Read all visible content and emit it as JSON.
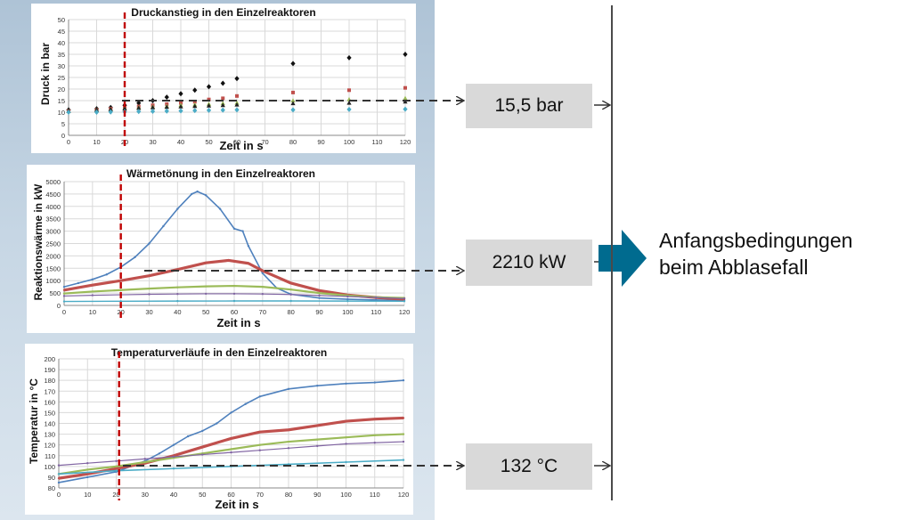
{
  "chart_data": [
    {
      "type": "scatter",
      "title": "Druckanstieg in den Einzelreaktoren",
      "xlabel": "Zeit in s",
      "ylabel": "Druck in bar",
      "xlim": [
        0,
        120
      ],
      "ylim": [
        0,
        50
      ],
      "xticks": [
        0,
        10,
        20,
        30,
        40,
        50,
        60,
        70,
        80,
        90,
        100,
        110,
        120
      ],
      "yticks": [
        0,
        5,
        10,
        15,
        20,
        25,
        30,
        35,
        40,
        45,
        50
      ],
      "grid": true,
      "marker_line_x": 20,
      "series": [
        {
          "color": "#111111",
          "marker": "diamond",
          "x": [
            0,
            10,
            15,
            20,
            25,
            30,
            35,
            40,
            45,
            50,
            55,
            60,
            80,
            100,
            120
          ],
          "y": [
            11,
            11.5,
            12,
            13,
            14,
            15,
            16.5,
            18,
            19.5,
            21,
            22.5,
            24.5,
            31,
            33.5,
            35
          ]
        },
        {
          "color": "#c0504d",
          "marker": "square",
          "x": [
            0,
            10,
            15,
            20,
            25,
            30,
            35,
            40,
            45,
            50,
            55,
            60,
            80,
            100,
            120
          ],
          "y": [
            10.5,
            11,
            11.5,
            12,
            12.5,
            13,
            13.5,
            14,
            14.5,
            15.5,
            16,
            17,
            18.5,
            19.5,
            20.5
          ]
        },
        {
          "color": "#9bbb59",
          "marker": "triangle",
          "x": [
            0,
            10,
            15,
            20,
            25,
            30,
            35,
            40,
            45,
            50,
            55,
            60,
            80,
            100,
            120
          ],
          "y": [
            10.5,
            11,
            11.2,
            11.6,
            12,
            12.3,
            12.6,
            13,
            13.2,
            13.5,
            13.8,
            14,
            15,
            15.5,
            16
          ]
        },
        {
          "color": "#222222",
          "marker": "triangle",
          "x": [
            0,
            10,
            15,
            20,
            25,
            30,
            35,
            40,
            45,
            50,
            55,
            60,
            80,
            100,
            120
          ],
          "y": [
            10.5,
            11,
            11.2,
            11.5,
            11.8,
            12,
            12.2,
            12.4,
            12.6,
            12.8,
            13,
            13.2,
            13.8,
            14,
            14.5
          ]
        },
        {
          "color": "#4bacc6",
          "marker": "diamond",
          "x": [
            0,
            10,
            15,
            20,
            25,
            30,
            35,
            40,
            45,
            50,
            55,
            60,
            80,
            100,
            120
          ],
          "y": [
            10,
            10,
            10.1,
            10.2,
            10.3,
            10.4,
            10.5,
            10.6,
            10.7,
            10.8,
            10.9,
            11,
            11,
            11.2,
            11.3
          ]
        }
      ]
    },
    {
      "type": "line",
      "title": "Wärmetönung in den Einzelreaktoren",
      "xlabel": "Zeit in s",
      "ylabel": "Reaktionswärme in kW",
      "xlim": [
        0,
        120
      ],
      "ylim": [
        0,
        5000
      ],
      "xticks": [
        0,
        10,
        20,
        30,
        40,
        50,
        60,
        70,
        80,
        90,
        100,
        110,
        120
      ],
      "yticks": [
        0,
        500,
        1000,
        1500,
        2000,
        2500,
        3000,
        3500,
        4000,
        4500,
        5000
      ],
      "grid": true,
      "marker_line_x": 20,
      "series": [
        {
          "color": "#4f81bd",
          "width": 1.6,
          "x": [
            0,
            5,
            10,
            15,
            20,
            25,
            30,
            35,
            40,
            45,
            47,
            50,
            55,
            60,
            63,
            65,
            70,
            75,
            80,
            90,
            100,
            110,
            120
          ],
          "y": [
            750,
            900,
            1050,
            1250,
            1550,
            1950,
            2500,
            3200,
            3900,
            4500,
            4600,
            4450,
            3900,
            3100,
            3000,
            2400,
            1300,
            700,
            450,
            300,
            250,
            220,
            200
          ]
        },
        {
          "color": "#c0504d",
          "width": 3.2,
          "x": [
            0,
            10,
            20,
            30,
            40,
            50,
            58,
            65,
            70,
            80,
            90,
            100,
            110,
            120
          ],
          "y": [
            620,
            820,
            1000,
            1200,
            1450,
            1720,
            1820,
            1700,
            1400,
            900,
            600,
            420,
            320,
            250
          ]
        },
        {
          "color": "#9bbb59",
          "width": 2.2,
          "x": [
            0,
            10,
            20,
            30,
            40,
            50,
            60,
            70,
            80,
            90,
            100,
            110,
            120
          ],
          "y": [
            480,
            560,
            620,
            680,
            730,
            770,
            790,
            750,
            640,
            500,
            400,
            330,
            300
          ]
        },
        {
          "color": "#8064a2",
          "width": 1.2,
          "x": [
            0,
            10,
            20,
            30,
            40,
            50,
            60,
            70,
            80,
            90,
            100,
            110,
            120
          ],
          "y": [
            380,
            410,
            430,
            450,
            460,
            470,
            470,
            460,
            440,
            400,
            360,
            320,
            280
          ]
        },
        {
          "color": "#4bacc6",
          "width": 1.4,
          "x": [
            0,
            20,
            40,
            60,
            80,
            100,
            120
          ],
          "y": [
            160,
            170,
            175,
            180,
            180,
            175,
            170
          ]
        }
      ]
    },
    {
      "type": "line",
      "title": "Temperaturverläufe in den Einzelreaktoren",
      "xlabel": "Zeit in s",
      "ylabel": "Temperatur in °C",
      "xlim": [
        0,
        120
      ],
      "ylim": [
        80,
        200
      ],
      "xticks": [
        0,
        10,
        20,
        30,
        40,
        50,
        60,
        70,
        80,
        90,
        100,
        110,
        120
      ],
      "yticks": [
        80,
        90,
        100,
        110,
        120,
        130,
        140,
        150,
        160,
        170,
        180,
        190,
        200
      ],
      "grid": true,
      "marker_line_x": 21,
      "series": [
        {
          "color": "#4f81bd",
          "width": 1.6,
          "x": [
            0,
            10,
            20,
            25,
            30,
            35,
            40,
            45,
            50,
            55,
            60,
            65,
            70,
            80,
            90,
            100,
            110,
            120
          ],
          "y": [
            85,
            90,
            95,
            100,
            105,
            112,
            120,
            128,
            133,
            140,
            150,
            158,
            165,
            172,
            175,
            177,
            178,
            180
          ]
        },
        {
          "color": "#c0504d",
          "width": 3.2,
          "x": [
            0,
            10,
            20,
            30,
            40,
            50,
            60,
            70,
            80,
            90,
            100,
            110,
            120
          ],
          "y": [
            89,
            93,
            98,
            103,
            110,
            118,
            126,
            132,
            134,
            138,
            142,
            144,
            145
          ]
        },
        {
          "color": "#9bbb59",
          "width": 2.2,
          "x": [
            0,
            10,
            20,
            30,
            40,
            50,
            60,
            70,
            80,
            90,
            100,
            110,
            120
          ],
          "y": [
            93,
            97,
            100,
            104,
            108,
            112,
            116,
            120,
            123,
            125,
            127,
            129,
            130
          ]
        },
        {
          "color": "#8064a2",
          "width": 1.2,
          "x": [
            0,
            10,
            20,
            30,
            40,
            50,
            60,
            70,
            80,
            90,
            100,
            110,
            120
          ],
          "y": [
            101,
            103,
            105,
            107,
            109,
            111,
            113,
            115,
            117,
            119,
            121,
            122,
            123
          ]
        },
        {
          "color": "#4bacc6",
          "width": 1.6,
          "x": [
            0,
            20,
            40,
            60,
            80,
            100,
            120
          ],
          "y": [
            93,
            96,
            98,
            100,
            102,
            104,
            106
          ]
        }
      ]
    }
  ],
  "callouts": {
    "pressure": "15,5 bar",
    "heat": "2210 kW",
    "temperature": "132 °C"
  },
  "conclusion": {
    "line1": "Anfangsbedingungen",
    "line2": "beim Abblasefall"
  },
  "colors": {
    "arrow": "#006b8f",
    "marker_line": "#c00000",
    "dashed_connector": "#333333"
  }
}
